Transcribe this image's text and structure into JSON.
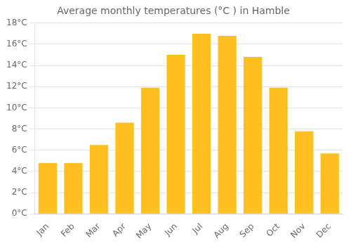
{
  "chart_data": {
    "type": "bar",
    "title": "Average monthly temperatures (°C ) in Hamble",
    "categories": [
      "Jan",
      "Feb",
      "Mar",
      "Apr",
      "May",
      "Jun",
      "Jul",
      "Aug",
      "Sep",
      "Oct",
      "Nov",
      "Dec"
    ],
    "values": [
      4.8,
      4.8,
      6.5,
      8.6,
      11.9,
      15.0,
      17.0,
      16.8,
      14.8,
      11.9,
      7.8,
      5.7
    ],
    "color": "#FFC020",
    "ylim": [
      0,
      18
    ],
    "yticks": [
      {
        "value": 0,
        "label": "0°C"
      },
      {
        "value": 2,
        "label": "2°C"
      },
      {
        "value": 4,
        "label": "4°C"
      },
      {
        "value": 6,
        "label": "6°C"
      },
      {
        "value": 8,
        "label": "8°C"
      },
      {
        "value": 10,
        "label": "10°C"
      },
      {
        "value": 12,
        "label": "12°C"
      },
      {
        "value": 14,
        "label": "14°C"
      },
      {
        "value": 16,
        "label": "16°C"
      },
      {
        "value": 18,
        "label": "18°C"
      }
    ],
    "grid": true
  }
}
